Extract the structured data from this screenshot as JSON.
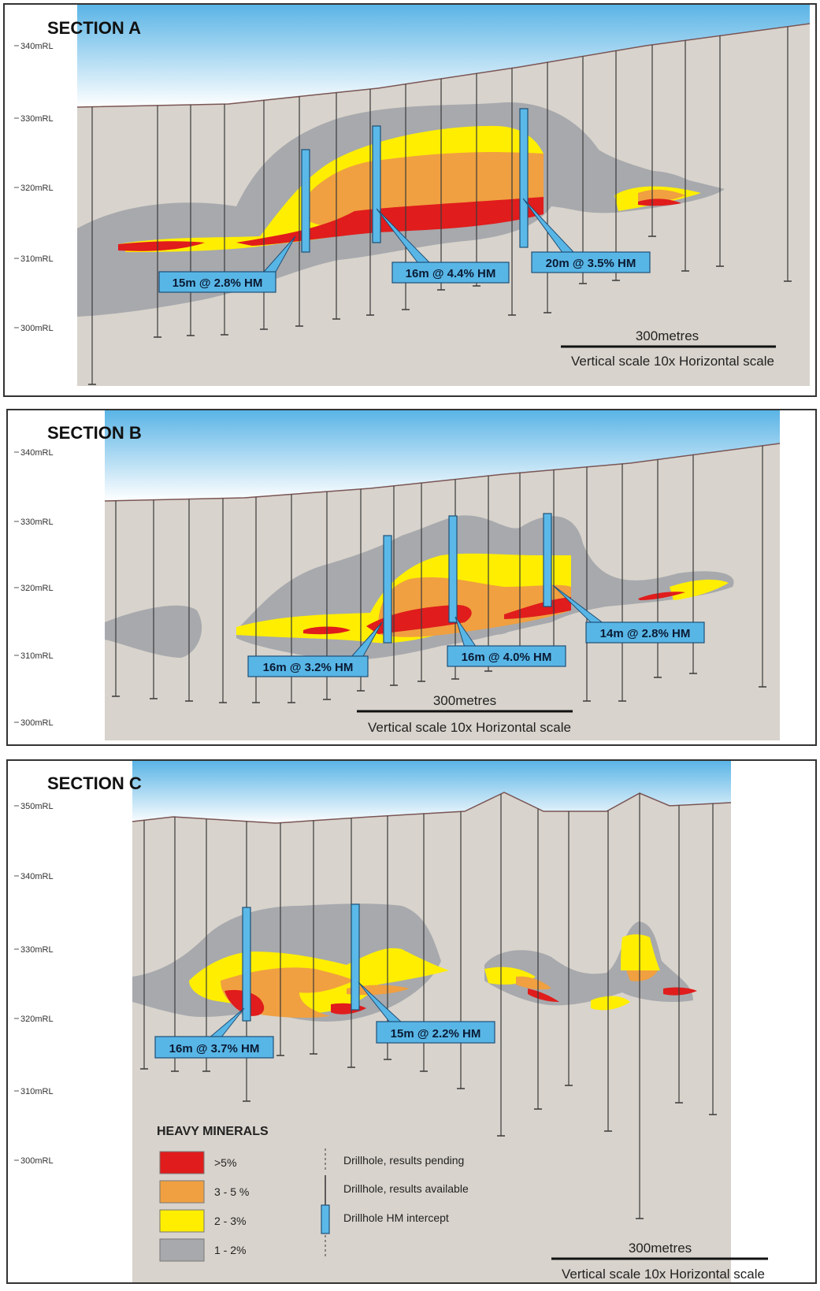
{
  "colors": {
    "sky_top": "#5ab4e6",
    "sky_bottom": "#ffffff",
    "ground": "#d8d3cc",
    "zone_1_2": "#a7a9ad",
    "zone_2_3": "#ffee00",
    "zone_3_5": "#f0a040",
    "zone_gt5": "#e01c1c",
    "intercept": "#5ab9e8",
    "callout_fill": "#58b6e6",
    "drillhole": "#333333"
  },
  "sections": [
    {
      "title": "SECTION A",
      "rl_ticks": [
        "340mRL",
        "330mRL",
        "320mRL",
        "310mRL",
        "300mRL"
      ],
      "intercepts": [
        "15m @ 2.8% HM",
        "16m @ 4.4% HM",
        "20m @ 3.5% HM"
      ],
      "scale_bar_label": "300metres",
      "scale_note": "Vertical scale 10x Horizontal scale"
    },
    {
      "title": "SECTION B",
      "rl_ticks": [
        "340mRL",
        "330mRL",
        "320mRL",
        "310mRL",
        "300mRL"
      ],
      "intercepts": [
        "16m @ 3.2% HM",
        "16m @ 4.0% HM",
        "14m @ 2.8% HM"
      ],
      "scale_bar_label": "300metres",
      "scale_note": "Vertical scale 10x Horizontal scale"
    },
    {
      "title": "SECTION C",
      "rl_ticks": [
        "350mRL",
        "340mRL",
        "330mRL",
        "320mRL",
        "310mRL",
        "300mRL"
      ],
      "intercepts": [
        "16m @ 3.7% HM",
        "15m @ 2.2% HM"
      ],
      "scale_bar_label": "300metres",
      "scale_note": "Vertical scale 10x Horizontal scale"
    }
  ],
  "legend": {
    "title": "HEAVY MINERALS",
    "grades": [
      ">5%",
      "3 - 5 %",
      "2 - 3%",
      "1 - 2%"
    ],
    "symbols": [
      "Drillhole, results pending",
      "Drillhole, results available",
      "Drillhole HM intercept"
    ]
  }
}
